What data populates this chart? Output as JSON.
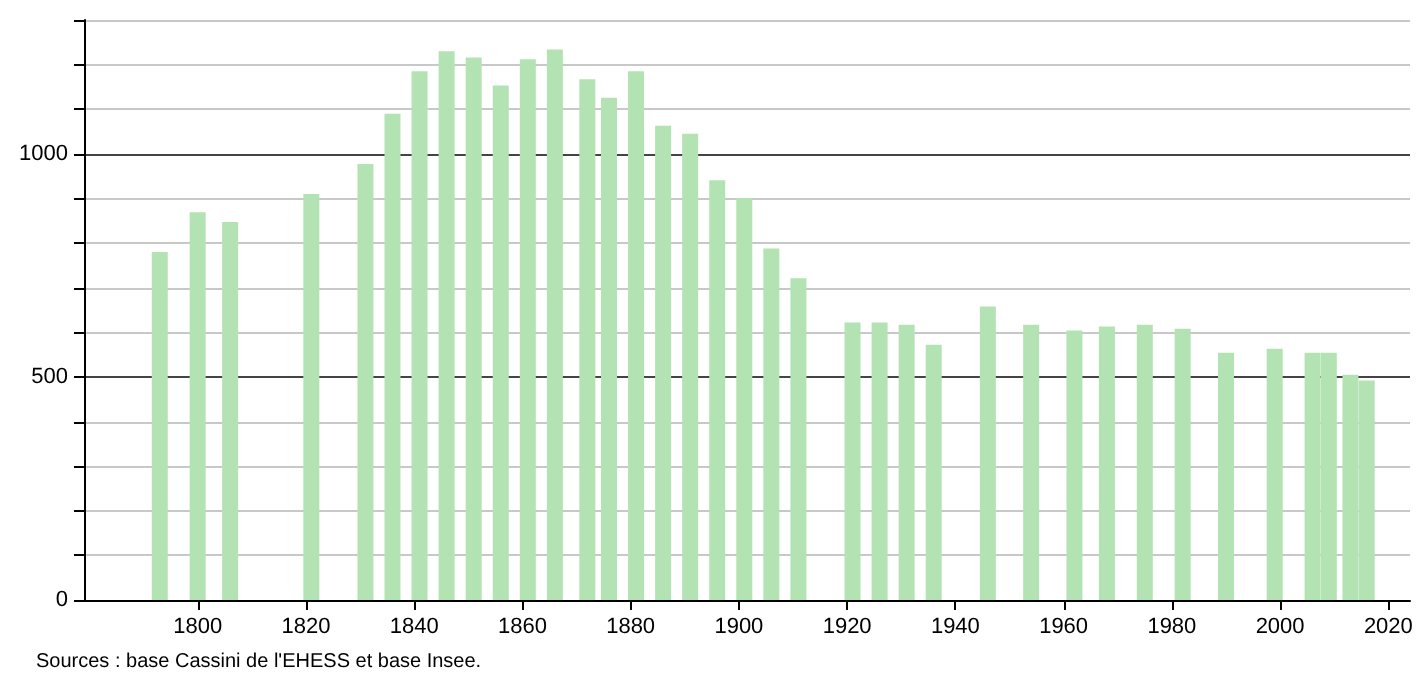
{
  "chart_data": {
    "type": "bar",
    "color": "#b3e3b3",
    "x": [
      1793,
      1800,
      1806,
      1821,
      1831,
      1836,
      1841,
      1846,
      1851,
      1856,
      1861,
      1866,
      1872,
      1876,
      1881,
      1886,
      1891,
      1896,
      1901,
      1906,
      1911,
      1921,
      1926,
      1931,
      1936,
      1946,
      1954,
      1962,
      1968,
      1975,
      1982,
      1990,
      1999,
      2006,
      2009,
      2013,
      2016
    ],
    "values": [
      780,
      869,
      847,
      910,
      977,
      1090,
      1185,
      1230,
      1216,
      1153,
      1212,
      1234,
      1167,
      1126,
      1185,
      1063,
      1045,
      941,
      901,
      788,
      721,
      622,
      622,
      617,
      572,
      658,
      617,
      604,
      613,
      617,
      608,
      554,
      563,
      554,
      554,
      505,
      492
    ],
    "xlim": [
      1779,
      2024
    ],
    "xticks": [
      1800,
      1820,
      1840,
      1860,
      1880,
      1900,
      1920,
      1940,
      1960,
      1980,
      2000,
      2020
    ],
    "ylim": [
      0,
      1300
    ],
    "yticks": [
      0,
      {
        "value": 100,
        "label": null
      },
      {
        "value": 200,
        "label": null
      },
      {
        "value": 300,
        "label": null
      },
      {
        "value": 400,
        "label": null
      },
      500,
      {
        "value": 600,
        "label": null
      },
      {
        "value": 700,
        "label": null
      },
      {
        "value": 800,
        "label": null
      },
      {
        "value": 900,
        "label": null
      },
      1000,
      {
        "value": 1100,
        "label": null
      },
      {
        "value": 1200,
        "label": null
      },
      {
        "value": 1300,
        "label": null
      }
    ],
    "grid": "y",
    "annotations": [
      "Sources : base Cassini de l'EHESS et base Insee."
    ]
  }
}
